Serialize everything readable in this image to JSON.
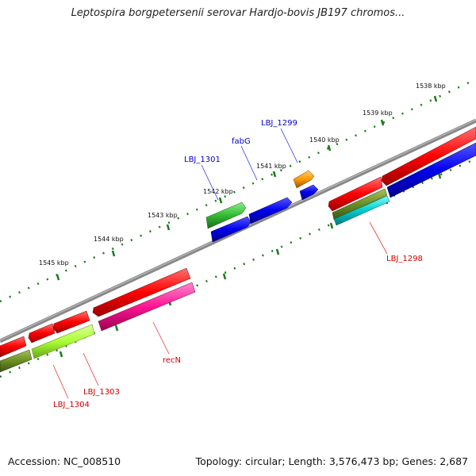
{
  "title": "Leptospira borgpetersenii serovar Hardjo-bovis JB197 chromos...",
  "footer": {
    "accession_label": "Accession:",
    "accession": "NC_008510",
    "topology_label": "Topology:",
    "topology": "circular",
    "length_label": "Length:",
    "length": "3,576,473 bp",
    "genes_label": "Genes:",
    "genes": "2,687"
  },
  "ruler_labels": [
    "1538 kbp",
    "1539 kbp",
    "1540 kbp",
    "1541 kbp",
    "1542 kbp",
    "1543 kbp",
    "1544 kbp",
    "1545 kbp"
  ],
  "gene_labels": {
    "forward": [
      "LBJ_1299",
      "fabG",
      "LBJ_1301"
    ],
    "reverse": [
      "LBJ_1298",
      "recN",
      "LBJ_1303",
      "LBJ_1304"
    ]
  },
  "colors": {
    "forward_label": "#0000cc",
    "reverse_label": "#cc0000",
    "backbone": "#888888",
    "tick": "#1a7a1a",
    "red_feature": "#ff0000",
    "blue_feature": "#0000ee",
    "green_feature": "#33bb33",
    "orange_feature": "#ff9900",
    "olive_feature": "#6b8e23",
    "cyan_feature": "#00cccc",
    "lime_feature": "#aaff33",
    "magenta_feature": "#ff1493"
  }
}
